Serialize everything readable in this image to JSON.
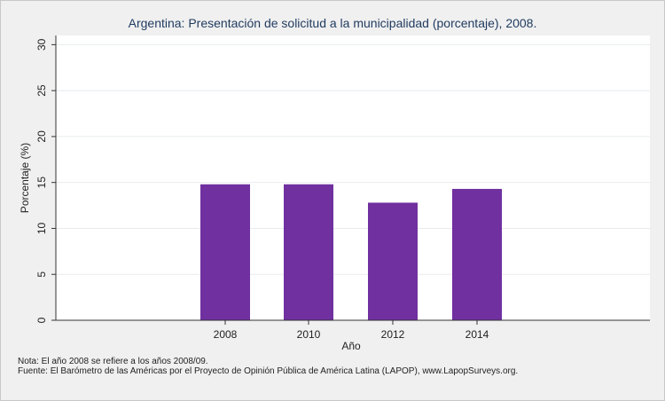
{
  "chart_data": {
    "type": "bar",
    "title": "Argentina: Presentación de solicitud a la municipalidad (porcentaje), 2008.",
    "xlabel": "Año",
    "ylabel": "Porcentaje (%)",
    "categories": [
      "2008",
      "2010",
      "2012",
      "2014"
    ],
    "values": [
      14.8,
      14.8,
      12.8,
      14.3
    ],
    "ylim": [
      0,
      31
    ],
    "yticks": [
      "0",
      "5",
      "10",
      "15",
      "20",
      "25",
      "30"
    ],
    "grid": true,
    "bar_color": "#7030a0"
  },
  "notes": {
    "nota": "Nota: El año 2008 se refiere a los años 2008/09.",
    "fuente": "Fuente: El Barómetro de las Américas por el Proyecto de Opinión Pública de América Latina (LAPOP), www.LapopSurveys.org."
  }
}
